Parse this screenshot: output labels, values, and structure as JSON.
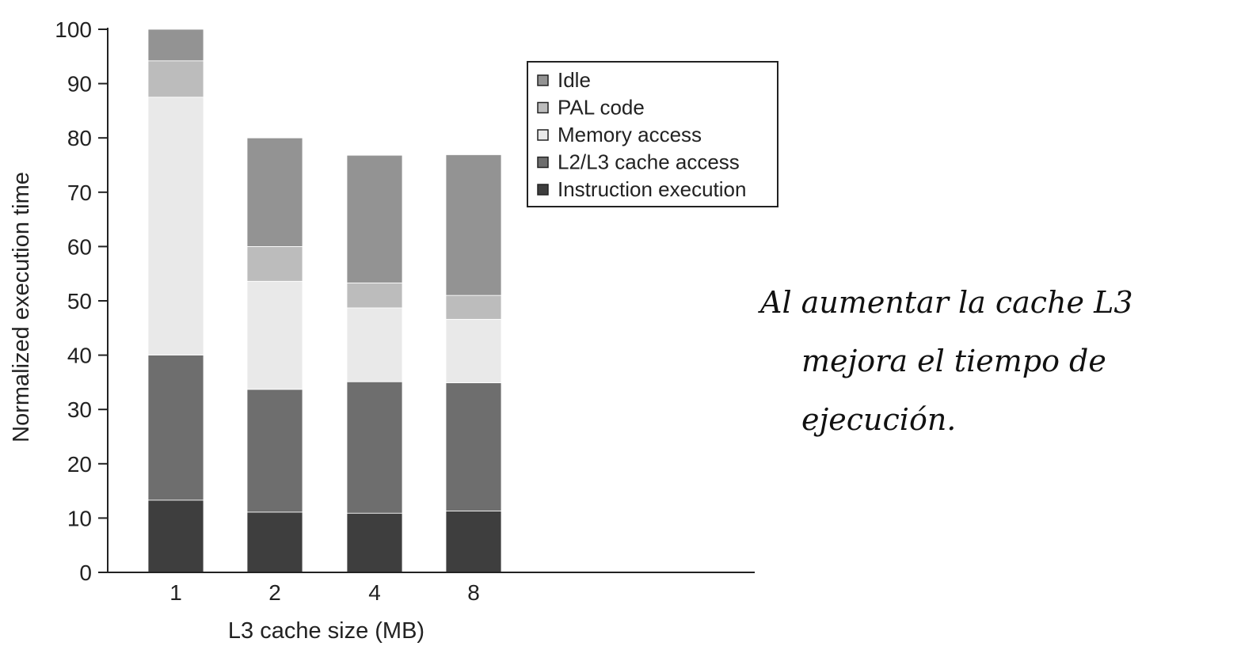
{
  "chart_data": {
    "type": "bar",
    "stacked": true,
    "categories": [
      "1",
      "2",
      "4",
      "8"
    ],
    "xlabel": "L3 cache size (MB)",
    "ylabel": "Normalized execution time",
    "ylim": [
      0,
      100
    ],
    "yticks": [
      0,
      10,
      20,
      30,
      40,
      50,
      60,
      70,
      80,
      90,
      100
    ],
    "grid": false,
    "legend_position": "top-right",
    "series": [
      {
        "name": "Instruction execution",
        "color": "#3e3e3e",
        "values": [
          13.3,
          11.1,
          10.9,
          11.3
        ]
      },
      {
        "name": "L2/L3 cache access",
        "color": "#6e6e6e",
        "values": [
          26.7,
          22.6,
          24.2,
          23.6
        ]
      },
      {
        "name": "Memory access",
        "color": "#e9e9e9",
        "values": [
          47.5,
          19.9,
          13.6,
          11.7
        ]
      },
      {
        "name": "PAL code",
        "color": "#bcbcbc",
        "values": [
          6.7,
          6.4,
          4.6,
          4.4
        ]
      },
      {
        "name": "Idle",
        "color": "#939393",
        "values": [
          5.8,
          20.0,
          23.5,
          25.9
        ]
      }
    ],
    "legend_order": [
      "Idle",
      "PAL code",
      "Memory access",
      "L2/L3 cache access",
      "Instruction execution"
    ]
  },
  "annotation": {
    "line1": "Al aumentar la cache L3",
    "line2": "mejora el tiempo de ejecución."
  }
}
